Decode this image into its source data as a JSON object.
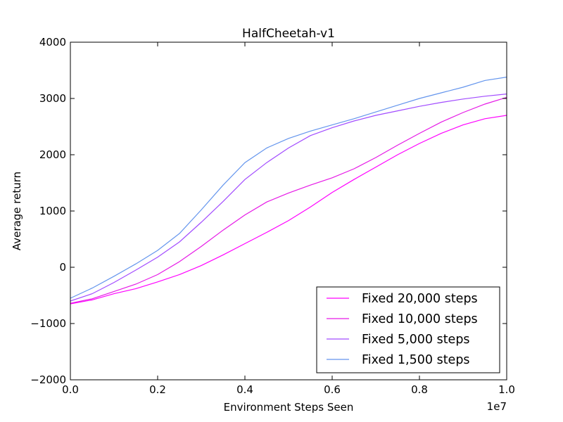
{
  "chart_data": {
    "type": "line",
    "title": "HalfCheetah-v1",
    "xlabel": "Environment Steps Seen",
    "ylabel": "Average return",
    "x_offset_label": "1e7",
    "xlim": [
      0,
      1.0
    ],
    "ylim": [
      -2000,
      4000
    ],
    "xticks": [
      0.0,
      0.2,
      0.4,
      0.6,
      0.8,
      1.0
    ],
    "xtick_labels": [
      "0.0",
      "0.2",
      "0.4",
      "0.6",
      "0.8",
      "1.0"
    ],
    "yticks": [
      -2000,
      -1000,
      0,
      1000,
      2000,
      3000,
      4000
    ],
    "ytick_labels": [
      "−2000",
      "−1000",
      "0",
      "1000",
      "2000",
      "3000",
      "4000"
    ],
    "grid": false,
    "legend_position": "bottom-right",
    "series": [
      {
        "name": "Fixed 20,000 steps",
        "color": "#ff00ff",
        "x": [
          0.0,
          0.05,
          0.1,
          0.15,
          0.2,
          0.25,
          0.3,
          0.35,
          0.4,
          0.45,
          0.5,
          0.55,
          0.6,
          0.65,
          0.7,
          0.75,
          0.8,
          0.85,
          0.9,
          0.95,
          1.0
        ],
        "y": [
          -650,
          -580,
          -470,
          -380,
          -260,
          -130,
          30,
          220,
          420,
          620,
          830,
          1070,
          1330,
          1560,
          1780,
          2000,
          2200,
          2380,
          2530,
          2640,
          2700
        ]
      },
      {
        "name": "Fixed 10,000 steps",
        "color": "#e61ae6",
        "x": [
          0.0,
          0.05,
          0.1,
          0.15,
          0.2,
          0.25,
          0.3,
          0.35,
          0.4,
          0.45,
          0.5,
          0.55,
          0.6,
          0.65,
          0.7,
          0.75,
          0.8,
          0.85,
          0.9,
          0.95,
          1.0
        ],
        "y": [
          -640,
          -560,
          -430,
          -300,
          -130,
          100,
          370,
          660,
          930,
          1160,
          1320,
          1460,
          1590,
          1750,
          1950,
          2170,
          2380,
          2580,
          2750,
          2900,
          3020
        ]
      },
      {
        "name": "Fixed 5,000 steps",
        "color": "#a24cff",
        "x": [
          0.0,
          0.05,
          0.1,
          0.15,
          0.2,
          0.25,
          0.3,
          0.35,
          0.4,
          0.45,
          0.5,
          0.55,
          0.6,
          0.65,
          0.7,
          0.75,
          0.8,
          0.85,
          0.9,
          0.95,
          1.0
        ],
        "y": [
          -600,
          -470,
          -270,
          -50,
          180,
          450,
          800,
          1170,
          1560,
          1860,
          2120,
          2340,
          2480,
          2600,
          2700,
          2780,
          2860,
          2930,
          2990,
          3040,
          3080
        ]
      },
      {
        "name": "Fixed 1,500 steps",
        "color": "#6495ed",
        "x": [
          0.0,
          0.05,
          0.1,
          0.15,
          0.2,
          0.25,
          0.3,
          0.35,
          0.4,
          0.45,
          0.5,
          0.55,
          0.6,
          0.65,
          0.7,
          0.75,
          0.8,
          0.85,
          0.9,
          0.95,
          1.0
        ],
        "y": [
          -550,
          -370,
          -160,
          60,
          300,
          600,
          1020,
          1460,
          1860,
          2120,
          2290,
          2420,
          2530,
          2640,
          2760,
          2880,
          3000,
          3100,
          3200,
          3320,
          3380
        ]
      }
    ]
  }
}
